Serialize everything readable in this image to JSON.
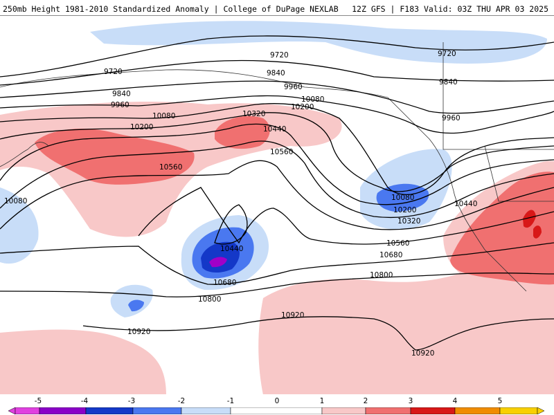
{
  "header": {
    "left": "250mb Height 1981-2010 Standardized Anomaly | College of DuPage NEXLAB",
    "right": "12Z GFS | F183 Valid: 03Z THU APR 03 2025"
  },
  "contour_labels": {
    "c9720a": "9720",
    "c9720b": "9720",
    "c9720c": "9720",
    "c9840a": "9840",
    "c9840b": "9840",
    "c9840c": "9840",
    "c9960a": "9960",
    "c9960b": "9960",
    "c9960c": "9960",
    "c10080a": "10080",
    "c10080b": "10080",
    "c10080c": "10080",
    "c10080d": "10080",
    "c10200a": "10200",
    "c10200b": "10200",
    "c10200c": "10200",
    "c10320a": "10320",
    "c10320b": "10320",
    "c10440a": "10440",
    "c10440b": "10440",
    "c10440c": "10440",
    "c10560a": "10560",
    "c10560b": "10560",
    "c10560c": "10560",
    "c10680a": "10680",
    "c10680b": "10680",
    "c10800a": "10800",
    "c10800b": "10800",
    "c10920a": "10920",
    "c10920b": "10920",
    "c10920c": "10920"
  },
  "colorbar": {
    "ticks": [
      "-5",
      "-4",
      "-3",
      "-2",
      "-1",
      "0",
      "1",
      "2",
      "3",
      "4",
      "5"
    ],
    "colors": {
      "neg5": "#e040e0",
      "neg4": "#8a00c8",
      "neg3": "#1438c8",
      "neg2": "#4a78f0",
      "neg1": "#c8ddf8",
      "zero": "#ffffff",
      "pos1": "#f8c8c8",
      "pos2": "#f07070",
      "pos3": "#d81818",
      "pos4": "#f08c00",
      "pos5": "#f8d000"
    }
  }
}
